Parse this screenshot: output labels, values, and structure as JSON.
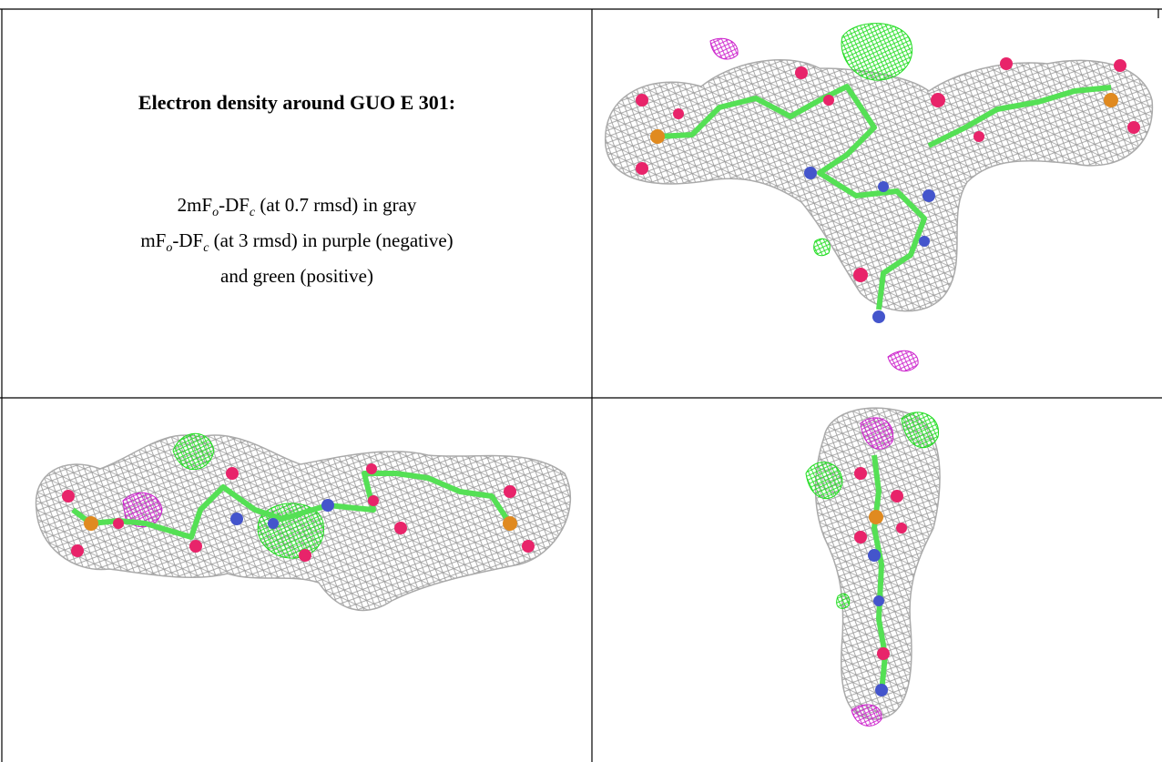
{
  "text": {
    "title": "Electron density around GUO E 301:",
    "lines": [
      [
        "2mF",
        "o",
        "-DF",
        "c",
        " (at 0.7 rmsd) in gray"
      ],
      [
        "mF",
        "o",
        "-DF",
        "c",
        " (at 3 rmsd) in purple (negative)"
      ],
      [
        "and green (positive)"
      ]
    ]
  }
}
